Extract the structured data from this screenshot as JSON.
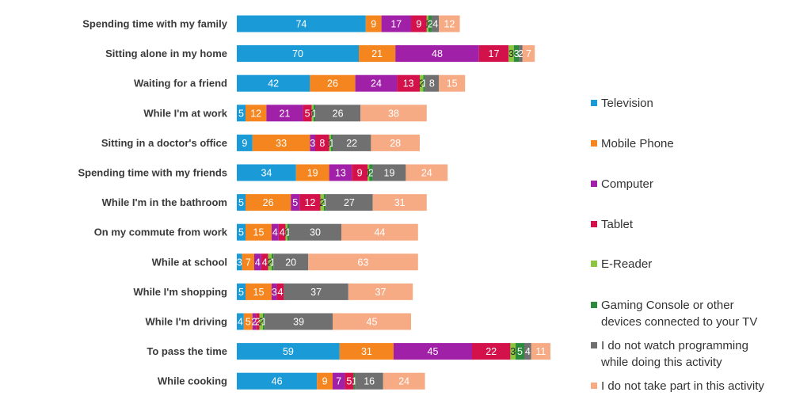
{
  "chart_data": {
    "type": "bar",
    "orientation": "horizontal",
    "stacked": true,
    "categories": [
      "Spending time with my family",
      "Sitting alone in my home",
      "Waiting for a friend",
      "While I'm at work",
      "Sitting in a doctor's office",
      "Spending time with my friends",
      "While I'm in the bathroom",
      "On my commute from work",
      "While at school",
      "While I'm shopping",
      "While I'm driving",
      "To pass the time",
      "While cooking"
    ],
    "series": [
      {
        "name": "Television",
        "color": "#1a9bd7",
        "values": [
          74,
          70,
          42,
          5,
          9,
          34,
          5,
          5,
          3,
          5,
          4,
          59,
          46
        ]
      },
      {
        "name": "Mobile Phone",
        "color": "#f5861f",
        "values": [
          9,
          21,
          26,
          12,
          33,
          19,
          26,
          15,
          7,
          15,
          5,
          31,
          9
        ]
      },
      {
        "name": "Computer",
        "color": "#a020a8",
        "values": [
          17,
          48,
          24,
          21,
          3,
          13,
          5,
          4,
          4,
          3,
          2,
          45,
          7
        ]
      },
      {
        "name": "Tablet",
        "color": "#d3114a",
        "values": [
          9,
          17,
          13,
          5,
          8,
          9,
          12,
          4,
          4,
          4,
          2,
          22,
          5
        ]
      },
      {
        "name": "E-Reader",
        "color": "#8cc63f",
        "values": [
          1,
          3,
          2,
          1,
          1,
          1,
          2,
          1,
          2,
          0,
          2,
          3,
          0
        ]
      },
      {
        "name": "Gaming Console or other devices connected to your TV",
        "color": "#2d8a3c",
        "values": [
          2,
          3,
          1,
          1,
          1,
          2,
          1,
          1,
          1,
          0,
          1,
          5,
          1
        ]
      },
      {
        "name": "I do not watch programming while doing this activity",
        "color": "#707070",
        "values": [
          4,
          2,
          8,
          26,
          22,
          19,
          27,
          30,
          20,
          37,
          39,
          4,
          16
        ]
      },
      {
        "name": "I do not take part in this activity",
        "color": "#f7ab85",
        "values": [
          12,
          7,
          15,
          38,
          28,
          24,
          31,
          44,
          63,
          37,
          45,
          11,
          24
        ]
      }
    ],
    "legend_position": "right",
    "grid": false
  }
}
